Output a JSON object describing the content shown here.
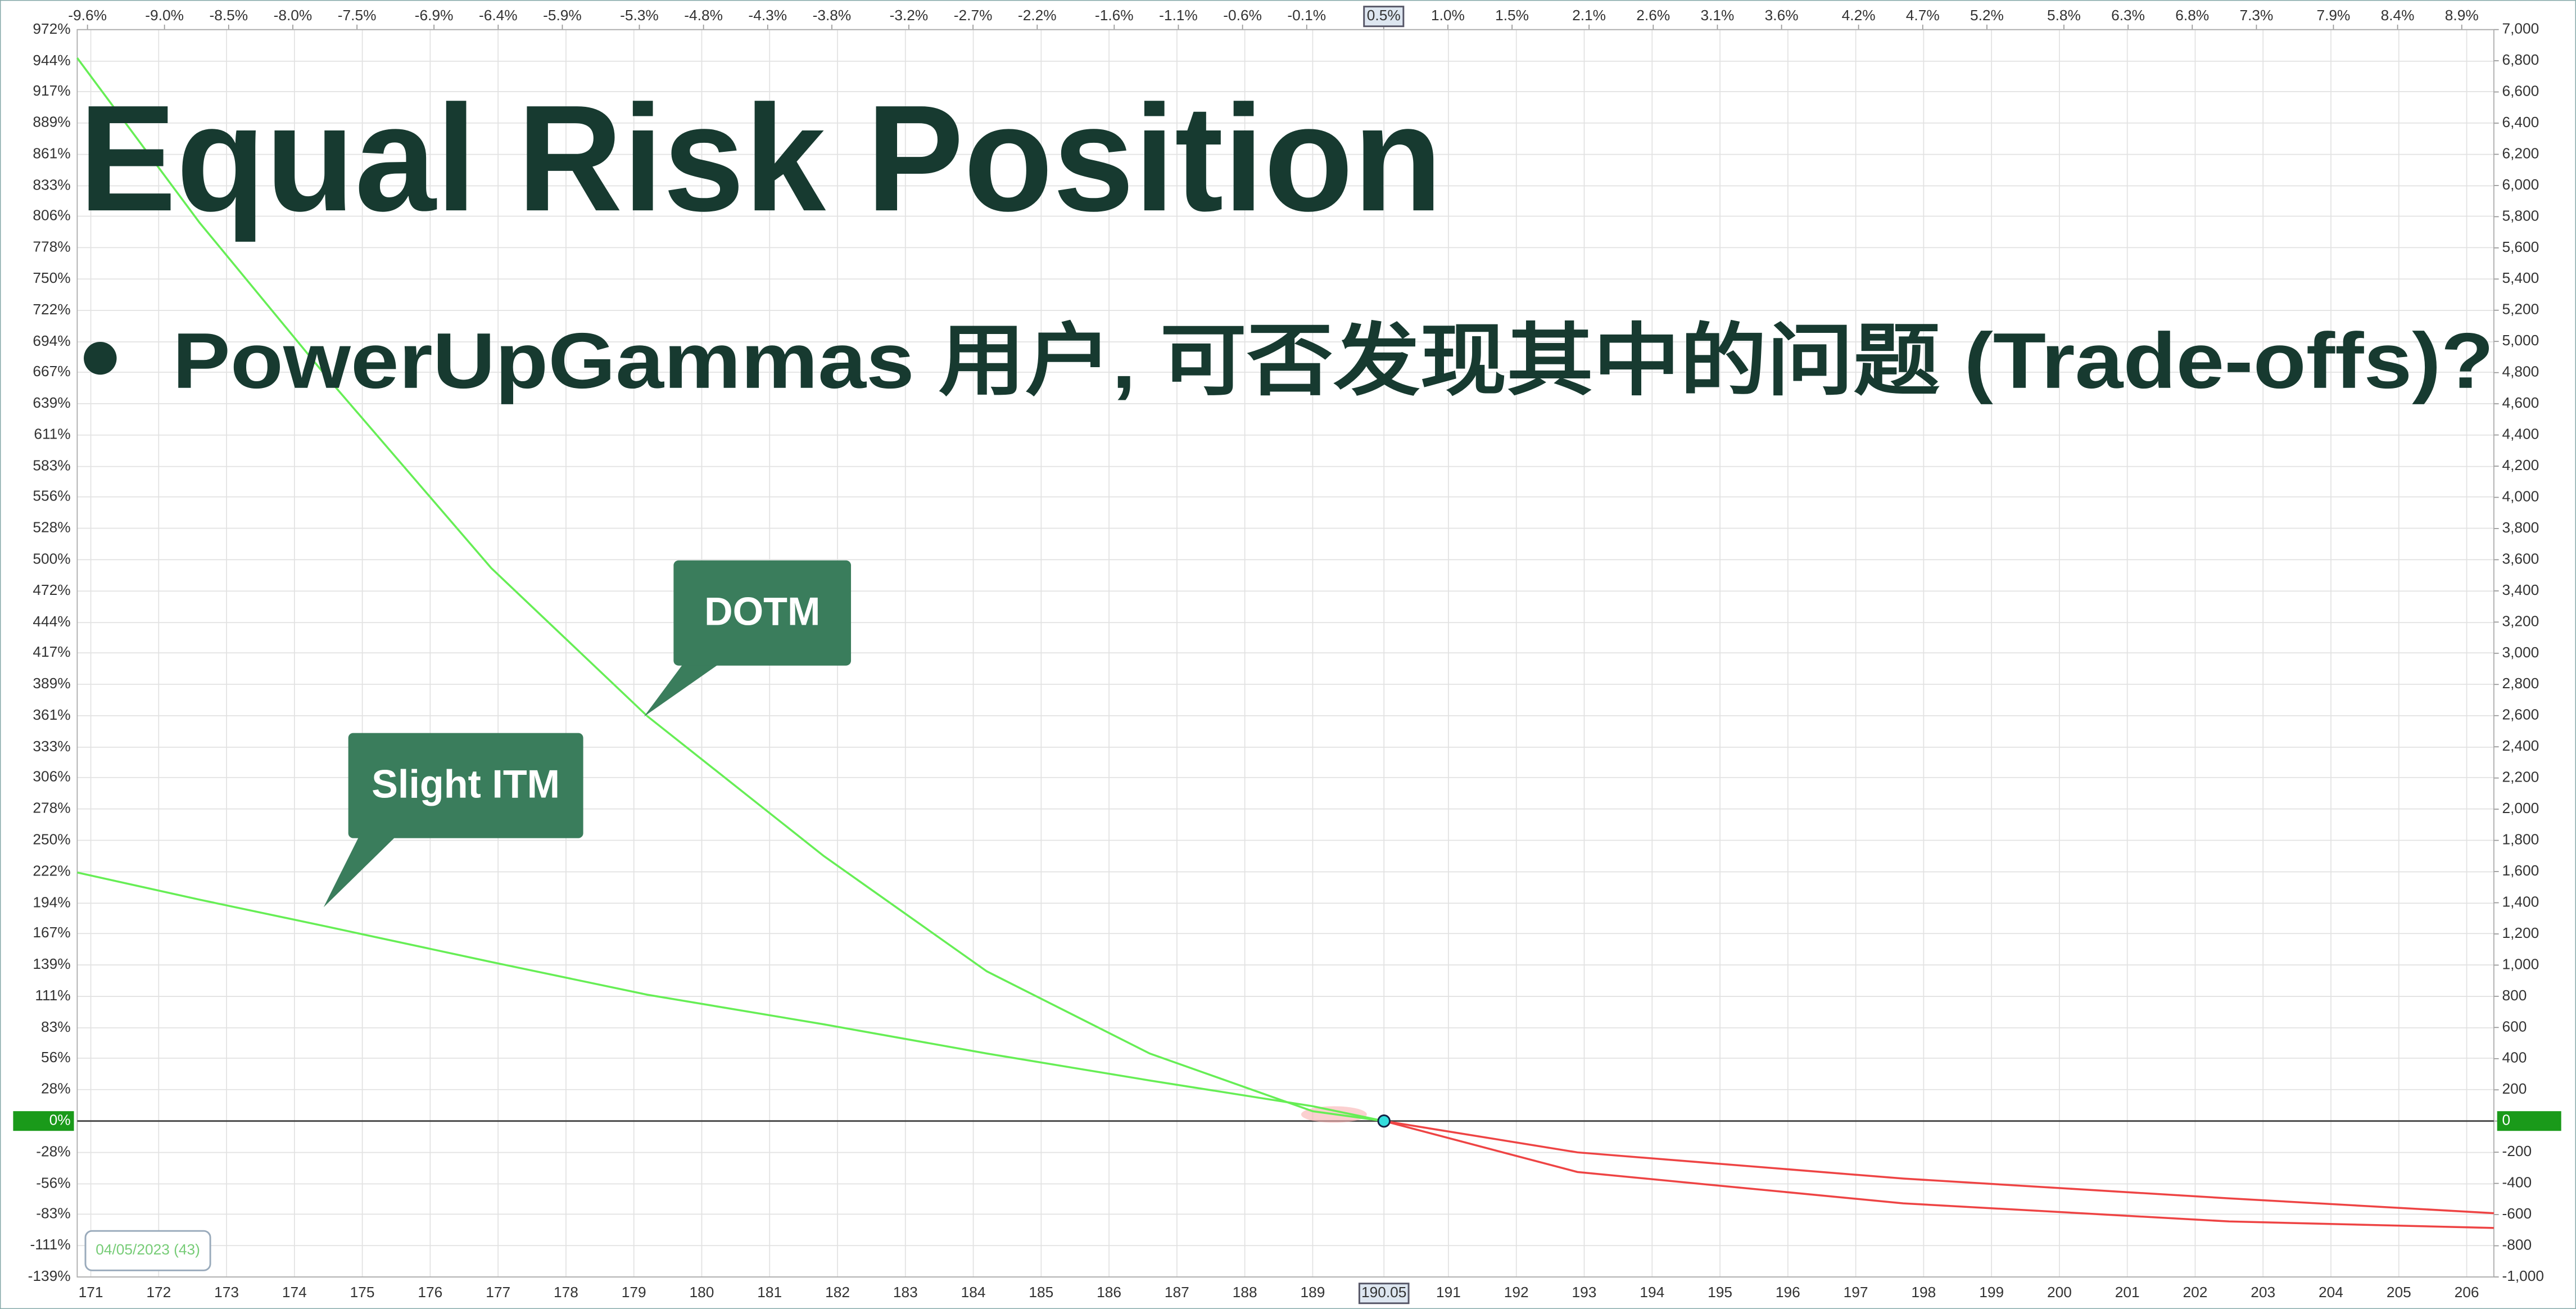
{
  "chart_data": {
    "type": "line",
    "title": "Equal Risk Position",
    "subtitle": "PowerUpGammas 用户, 可否发现其中的问题 (Trade-offs)?",
    "date_label": "04/05/2023 (43)",
    "grid": true,
    "positive_color": "#66ee55",
    "negative_color": "#ee4444",
    "marker": {
      "x": 190.05,
      "y": 0
    },
    "x": [
      170.8,
      172.6,
      174.5,
      176.9,
      179.2,
      181.8,
      184.2,
      186.6,
      189,
      190.05,
      192.9,
      197.7,
      202.5,
      206.4
    ],
    "series": [
      {
        "name": "Slight ITM",
        "axis": "y2",
        "values": [
          1594,
          1420,
          1245,
          1020,
          810,
          620,
          433,
          260,
          95,
          0,
          -201,
          -369,
          -496,
          -591
        ]
      },
      {
        "name": "DOTM",
        "axis": "y2",
        "values": [
          6818,
          5763,
          4760,
          3546,
          2596,
          1699,
          960,
          433,
          63,
          0,
          -327,
          -528,
          -644,
          -686
        ]
      }
    ],
    "xlim": [
      170.8,
      206.4
    ],
    "xticks": [
      171,
      172,
      173,
      174,
      175,
      176,
      177,
      178,
      179,
      180,
      181,
      182,
      183,
      184,
      185,
      186,
      187,
      188,
      189,
      190.05,
      191,
      192,
      193,
      194,
      195,
      196,
      197,
      198,
      199,
      200,
      201,
      202,
      203,
      204,
      205,
      206
    ],
    "x2lim": [
      -9.68,
      9.15
    ],
    "x2ticks": [
      {
        "value": -9.6,
        "label": "-9.6%"
      },
      {
        "value": -9.0,
        "label": "-9.0%"
      },
      {
        "value": -8.5,
        "label": "-8.5%"
      },
      {
        "value": -8.0,
        "label": "-8.0%"
      },
      {
        "value": -7.5,
        "label": "-7.5%"
      },
      {
        "value": -6.9,
        "label": "-6.9%"
      },
      {
        "value": -6.4,
        "label": "-6.4%"
      },
      {
        "value": -5.9,
        "label": "-5.9%"
      },
      {
        "value": -5.3,
        "label": "-5.3%"
      },
      {
        "value": -4.8,
        "label": "-4.8%"
      },
      {
        "value": -4.3,
        "label": "-4.3%"
      },
      {
        "value": -3.8,
        "label": "-3.8%"
      },
      {
        "value": -3.2,
        "label": "-3.2%"
      },
      {
        "value": -2.7,
        "label": "-2.7%"
      },
      {
        "value": -2.2,
        "label": "-2.2%"
      },
      {
        "value": -1.6,
        "label": "-1.6%"
      },
      {
        "value": -1.1,
        "label": "-1.1%"
      },
      {
        "value": -0.6,
        "label": "-0.6%"
      },
      {
        "value": -0.1,
        "label": "-0.1%"
      },
      {
        "value": 0.5,
        "label": "0.5%"
      },
      {
        "value": 1.0,
        "label": "1.0%"
      },
      {
        "value": 1.5,
        "label": "1.5%"
      },
      {
        "value": 2.1,
        "label": "2.1%"
      },
      {
        "value": 2.6,
        "label": "2.6%"
      },
      {
        "value": 3.1,
        "label": "3.1%"
      },
      {
        "value": 3.6,
        "label": "3.6%"
      },
      {
        "value": 4.2,
        "label": "4.2%"
      },
      {
        "value": 4.7,
        "label": "4.7%"
      },
      {
        "value": 5.2,
        "label": "5.2%"
      },
      {
        "value": 5.8,
        "label": "5.8%"
      },
      {
        "value": 6.3,
        "label": "6.3%"
      },
      {
        "value": 6.8,
        "label": "6.8%"
      },
      {
        "value": 7.3,
        "label": "7.3%"
      },
      {
        "value": 7.9,
        "label": "7.9%"
      },
      {
        "value": 8.4,
        "label": "8.4%"
      },
      {
        "value": 8.9,
        "label": "8.9%"
      }
    ],
    "ylim": [
      -138.9,
      972.2
    ],
    "yticks": [
      {
        "value": 972,
        "label": "972%"
      },
      {
        "value": 944,
        "label": "944%"
      },
      {
        "value": 917,
        "label": "917%"
      },
      {
        "value": 889,
        "label": "889%"
      },
      {
        "value": 861,
        "label": "861%"
      },
      {
        "value": 833,
        "label": "833%"
      },
      {
        "value": 806,
        "label": "806%"
      },
      {
        "value": 778,
        "label": "778%"
      },
      {
        "value": 750,
        "label": "750%"
      },
      {
        "value": 722,
        "label": "722%"
      },
      {
        "value": 694,
        "label": "694%"
      },
      {
        "value": 667,
        "label": "667%"
      },
      {
        "value": 639,
        "label": "639%"
      },
      {
        "value": 611,
        "label": "611%"
      },
      {
        "value": 583,
        "label": "583%"
      },
      {
        "value": 556,
        "label": "556%"
      },
      {
        "value": 528,
        "label": "528%"
      },
      {
        "value": 500,
        "label": "500%"
      },
      {
        "value": 472,
        "label": "472%"
      },
      {
        "value": 444,
        "label": "444%"
      },
      {
        "value": 417,
        "label": "417%"
      },
      {
        "value": 389,
        "label": "389%"
      },
      {
        "value": 361,
        "label": "361%"
      },
      {
        "value": 333,
        "label": "333%"
      },
      {
        "value": 306,
        "label": "306%"
      },
      {
        "value": 278,
        "label": "278%"
      },
      {
        "value": 250,
        "label": "250%"
      },
      {
        "value": 222,
        "label": "222%"
      },
      {
        "value": 194,
        "label": "194%"
      },
      {
        "value": 167,
        "label": "167%"
      },
      {
        "value": 139,
        "label": "139%"
      },
      {
        "value": 111,
        "label": "111%"
      },
      {
        "value": 83,
        "label": "83%"
      },
      {
        "value": 56,
        "label": "56%"
      },
      {
        "value": 28,
        "label": "28%"
      },
      {
        "value": 0,
        "label": "0%"
      },
      {
        "value": -28,
        "label": "-28%"
      },
      {
        "value": -56,
        "label": "-56%"
      },
      {
        "value": -83,
        "label": "-83%"
      },
      {
        "value": -111,
        "label": "-111%"
      },
      {
        "value": -139,
        "label": "-139%"
      }
    ],
    "y2lim": [
      -1000,
      7000
    ],
    "y2ticks": [
      {
        "value": 7000,
        "label": "7,000"
      },
      {
        "value": 6800,
        "label": "6,800"
      },
      {
        "value": 6600,
        "label": "6,600"
      },
      {
        "value": 6400,
        "label": "6,400"
      },
      {
        "value": 6200,
        "label": "6,200"
      },
      {
        "value": 6000,
        "label": "6,000"
      },
      {
        "value": 5800,
        "label": "5,800"
      },
      {
        "value": 5600,
        "label": "5,600"
      },
      {
        "value": 5400,
        "label": "5,400"
      },
      {
        "value": 5200,
        "label": "5,200"
      },
      {
        "value": 5000,
        "label": "5,000"
      },
      {
        "value": 4800,
        "label": "4,800"
      },
      {
        "value": 4600,
        "label": "4,600"
      },
      {
        "value": 4400,
        "label": "4,400"
      },
      {
        "value": 4200,
        "label": "4,200"
      },
      {
        "value": 4000,
        "label": "4,000"
      },
      {
        "value": 3800,
        "label": "3,800"
      },
      {
        "value": 3600,
        "label": "3,600"
      },
      {
        "value": 3400,
        "label": "3,400"
      },
      {
        "value": 3200,
        "label": "3,200"
      },
      {
        "value": 3000,
        "label": "3,000"
      },
      {
        "value": 2800,
        "label": "2,800"
      },
      {
        "value": 2600,
        "label": "2,600"
      },
      {
        "value": 2400,
        "label": "2,400"
      },
      {
        "value": 2200,
        "label": "2,200"
      },
      {
        "value": 2000,
        "label": "2,000"
      },
      {
        "value": 1800,
        "label": "1,800"
      },
      {
        "value": 1600,
        "label": "1,600"
      },
      {
        "value": 1400,
        "label": "1,400"
      },
      {
        "value": 1200,
        "label": "1,200"
      },
      {
        "value": 1000,
        "label": "1,000"
      },
      800,
      600,
      400,
      200,
      0,
      -200,
      -400,
      -600,
      -800,
      {
        "value": -1000,
        "label": "-1,000"
      }
    ]
  }
}
